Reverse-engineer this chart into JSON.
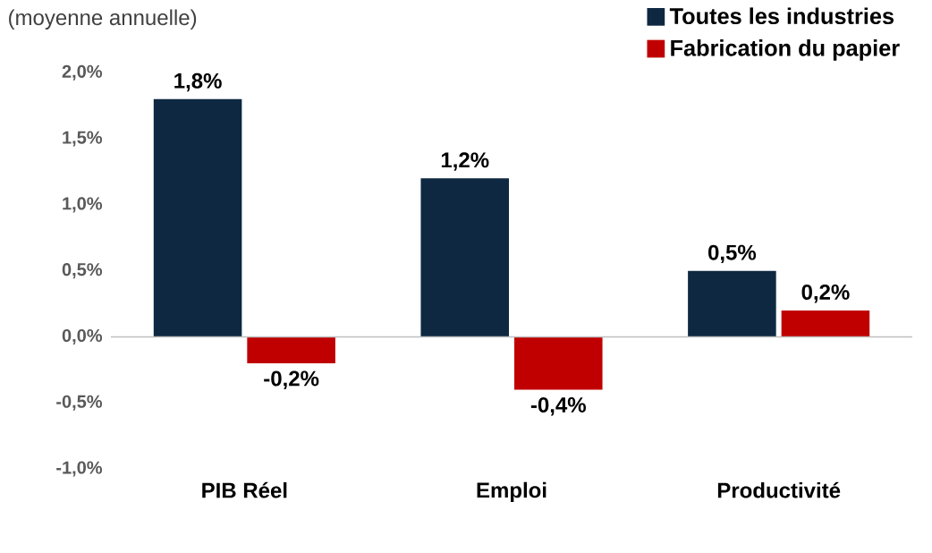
{
  "chart_data": {
    "type": "bar",
    "annotations": [
      "(moyenne annuelle)"
    ],
    "categories": [
      "PIB Réel",
      "Emploi",
      "Productivité"
    ],
    "series": [
      {
        "name": "Toutes les industries",
        "color": "#0e2841",
        "values": [
          1.8,
          1.2,
          0.5
        ],
        "value_labels": [
          "1,8%",
          "1,2%",
          "0,5%"
        ]
      },
      {
        "name": "Fabrication du papier",
        "color": "#c00000",
        "values": [
          -0.2,
          -0.4,
          0.2
        ],
        "value_labels": [
          "-0,2%",
          "-0,4%",
          "0,2%"
        ]
      }
    ],
    "ylim": [
      -1.0,
      2.0
    ],
    "yticks": [
      {
        "value": -1.0,
        "label": "-1,0%"
      },
      {
        "value": -0.5,
        "label": "-0,5%"
      },
      {
        "value": 0.0,
        "label": "0,0%"
      },
      {
        "value": 0.5,
        "label": "0,5%"
      },
      {
        "value": 1.0,
        "label": "1,0%"
      },
      {
        "value": 1.5,
        "label": "1,5%"
      },
      {
        "value": 2.0,
        "label": "2,0%"
      }
    ],
    "legend": "top right"
  }
}
